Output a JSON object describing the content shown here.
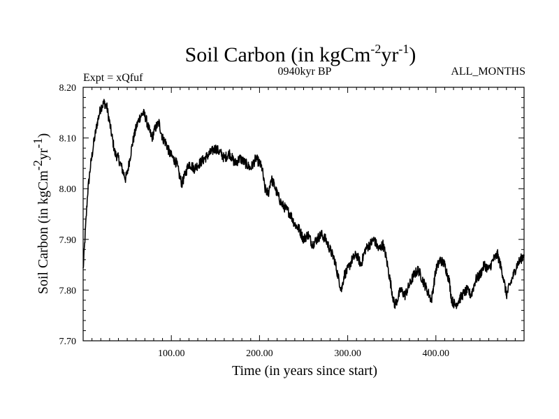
{
  "chart_data": {
    "type": "line",
    "title": {
      "main": "Soil Carbon (in kgCm",
      "sup1": "-2",
      "mid": "yr",
      "sup2": "-1",
      "end": ")"
    },
    "subtitle_left": "Expt = xQfuf",
    "subtitle_center": "0940kyr BP",
    "subtitle_right": "ALL_MONTHS",
    "xlabel": "Time (in years since start)",
    "ylabel": {
      "main": "Soil Carbon (in kgCm",
      "sup1": "-2",
      "mid": "yr",
      "sup2": "-1",
      "end": ")"
    },
    "xlim": [
      0,
      500
    ],
    "ylim": [
      7.7,
      8.2
    ],
    "x_ticks": [
      100,
      200,
      300,
      400
    ],
    "x_tick_labels": [
      "100.00",
      "200.00",
      "300.00",
      "400.00"
    ],
    "y_ticks": [
      7.7,
      7.8,
      7.9,
      8.0,
      8.1,
      8.2
    ],
    "y_tick_labels": [
      "7.70",
      "7.80",
      "7.90",
      "8.00",
      "8.10",
      "8.20"
    ],
    "grid": false,
    "series": [
      {
        "name": "Soil Carbon",
        "color": "#000000",
        "x": [
          0,
          2,
          5,
          8,
          12,
          16,
          20,
          24,
          27,
          30,
          33,
          36,
          40,
          44,
          48,
          50,
          53,
          56,
          60,
          64,
          68,
          71,
          74,
          78,
          82,
          86,
          90,
          94,
          98,
          102,
          106,
          110,
          112,
          116,
          120,
          126,
          132,
          138,
          144,
          150,
          156,
          160,
          166,
          172,
          178,
          184,
          190,
          196,
          200,
          203,
          206,
          210,
          213,
          216,
          220,
          225,
          230,
          235,
          240,
          245,
          250,
          255,
          260,
          265,
          270,
          275,
          280,
          285,
          290,
          293,
          296,
          300,
          305,
          310,
          315,
          320,
          325,
          330,
          335,
          340,
          343,
          346,
          350,
          353,
          356,
          360,
          365,
          370,
          375,
          380,
          385,
          390,
          395,
          400,
          405,
          410,
          415,
          418,
          422,
          426,
          430,
          435,
          440,
          445,
          450,
          455,
          460,
          465,
          470,
          473,
          476,
          480,
          484,
          488,
          492,
          496,
          500
        ],
        "y": [
          7.84,
          7.9,
          7.99,
          8.04,
          8.09,
          8.13,
          8.16,
          8.17,
          8.16,
          8.13,
          8.1,
          8.07,
          8.06,
          8.04,
          8.02,
          8.03,
          8.06,
          8.09,
          8.12,
          8.14,
          8.15,
          8.14,
          8.12,
          8.1,
          8.12,
          8.13,
          8.1,
          8.09,
          8.07,
          8.06,
          8.05,
          8.02,
          8.01,
          8.03,
          8.05,
          8.04,
          8.05,
          8.06,
          8.07,
          8.08,
          8.07,
          8.06,
          8.07,
          8.05,
          8.06,
          8.05,
          8.04,
          8.06,
          8.05,
          8.04,
          8.0,
          7.99,
          8.02,
          8.01,
          7.99,
          7.97,
          7.96,
          7.95,
          7.93,
          7.92,
          7.9,
          7.91,
          7.89,
          7.9,
          7.91,
          7.9,
          7.88,
          7.86,
          7.82,
          7.8,
          7.83,
          7.84,
          7.86,
          7.87,
          7.85,
          7.88,
          7.89,
          7.9,
          7.88,
          7.89,
          7.87,
          7.84,
          7.8,
          7.77,
          7.78,
          7.8,
          7.79,
          7.81,
          7.83,
          7.84,
          7.82,
          7.8,
          7.78,
          7.84,
          7.86,
          7.85,
          7.82,
          7.78,
          7.77,
          7.78,
          7.79,
          7.8,
          7.79,
          7.82,
          7.83,
          7.85,
          7.84,
          7.86,
          7.87,
          7.85,
          7.83,
          7.79,
          7.81,
          7.83,
          7.85,
          7.86,
          7.87
        ]
      }
    ]
  }
}
